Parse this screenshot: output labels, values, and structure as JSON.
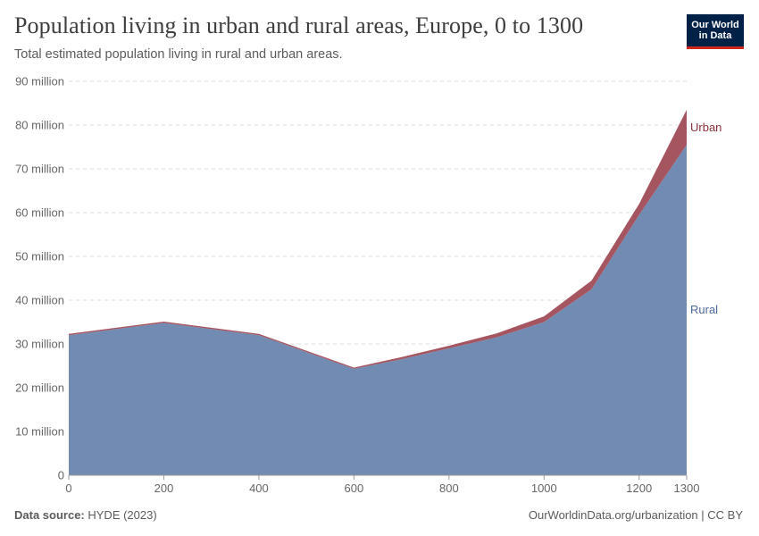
{
  "header": {
    "title": "Population living in urban and rural areas, Europe, 0 to 1300",
    "subtitle": "Total estimated population living in rural and urban areas."
  },
  "logo": {
    "line1": "Our World",
    "line2": "in Data",
    "bg_color": "#002147",
    "accent_color": "#ce261e"
  },
  "footer": {
    "source_label": "Data source:",
    "source_value": "HYDE (2023)",
    "right_text": "OurWorldinData.org/urbanization | CC BY"
  },
  "chart_data": {
    "type": "area",
    "stacked": true,
    "x": [
      0,
      200,
      400,
      600,
      700,
      800,
      900,
      1000,
      1100,
      1200,
      1300
    ],
    "series": [
      {
        "name": "Rural",
        "color": "#6d87b0",
        "values": [
          32.0,
          34.8,
          32.0,
          24.3,
          26.5,
          29.0,
          31.5,
          35.0,
          42.5,
          59.5,
          75.5
        ]
      },
      {
        "name": "Urban",
        "color": "#a2505b",
        "values": [
          0.3,
          0.3,
          0.3,
          0.3,
          0.5,
          0.6,
          0.9,
          1.3,
          2.0,
          2.5,
          8.0
        ]
      }
    ],
    "xticks": [
      0,
      200,
      400,
      600,
      800,
      1000,
      1200,
      1300
    ],
    "yticks": [
      0,
      10,
      20,
      30,
      40,
      50,
      60,
      70,
      80,
      90
    ],
    "ytick_labels": [
      "0",
      "10 million",
      "20 million",
      "30 million",
      "40 million",
      "50 million",
      "60 million",
      "70 million",
      "80 million",
      "90 million"
    ],
    "xlim": [
      0,
      1300
    ],
    "ylim": [
      0,
      90
    ],
    "grid": "horizontal-dashed",
    "legend": "inline-right"
  }
}
